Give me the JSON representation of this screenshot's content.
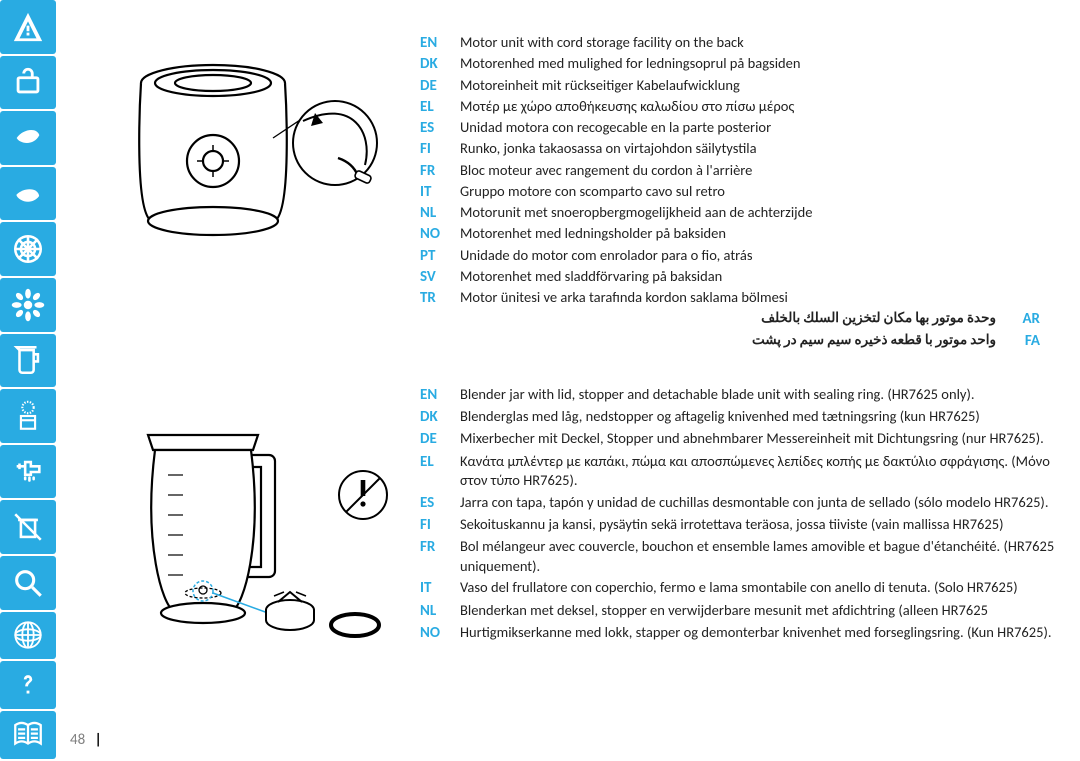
{
  "page_number": "48",
  "sidebar_bg": "#29abe2",
  "lang_code_color": "#29abe2",
  "text_color": "#222222",
  "section1": {
    "rows": [
      {
        "code": "EN",
        "text": "Motor unit with cord storage facility on the back"
      },
      {
        "code": "DK",
        "text": "Motorenhed med mulighed for ledningsoprul på bagsiden"
      },
      {
        "code": "DE",
        "text": "Motoreinheit mit rückseitiger Kabelaufwicklung"
      },
      {
        "code": "EL",
        "text": "Μοτέρ με χώρο αποθήκευσης καλωδίου στο πίσω μέρος"
      },
      {
        "code": "ES",
        "text": "Unidad motora con recogecable en la parte posterior"
      },
      {
        "code": "FI",
        "text": "Runko, jonka takaosassa on virtajohdon säilytystila"
      },
      {
        "code": "FR",
        "text": "Bloc moteur avec rangement du cordon à l'arrière"
      },
      {
        "code": "IT",
        "text": "Gruppo motore con scomparto cavo sul retro"
      },
      {
        "code": "NL",
        "text": "Motorunit met snoeropbergmogelijkheid aan de achterzijde"
      },
      {
        "code": "NO",
        "text": "Motorenhet med ledningsholder på baksiden"
      },
      {
        "code": "PT",
        "text": "Unidade do motor com enrolador para o fio, atrás"
      },
      {
        "code": "SV",
        "text": "Motorenhet med sladdförvaring på baksidan"
      },
      {
        "code": "TR",
        "text": "Motor ünitesi ve arka tarafında kordon saklama bölmesi"
      }
    ],
    "rtl_rows": [
      {
        "code": "AR",
        "text": "وحدة موتور بها مكان لتخزين السلك بالخلف"
      },
      {
        "code": "FA",
        "text": "واحد موتور با قطعه ذخیره سیم سیم در پشت"
      }
    ]
  },
  "section2": {
    "rows": [
      {
        "code": "EN",
        "text": "Blender jar with lid, stopper and detachable blade unit with sealing ring. (HR7625 only)."
      },
      {
        "code": "DK",
        "text": "Blenderglas med låg, nedstopper og aftagelig knivenhed med tætningsring (kun HR7625)"
      },
      {
        "code": "DE",
        "text": "Mixerbecher mit Deckel, Stopper und abnehmbarer Messereinheit mit Dichtungsring (nur HR7625)."
      },
      {
        "code": "EL",
        "text": "Κανάτα μπλέντερ με καπάκι, πώμα και αποσπώμενες λεπίδες κοπής με δακτύλιο σφράγισης. (Μόνο στον τύπο HR7625)."
      },
      {
        "code": "ES",
        "text": "Jarra con tapa, tapón y unidad de cuchillas desmontable con junta de sellado (sólo modelo HR7625)."
      },
      {
        "code": "FI",
        "text": "Sekoituskannu ja kansi, pysäytin sekä irrotettava teräosa, jossa tiiviste (vain mallissa HR7625)"
      },
      {
        "code": "FR",
        "text": "Bol mélangeur avec couvercle, bouchon et ensemble lames amovible et bague d'étanchéité. (HR7625 uniquement)."
      },
      {
        "code": "IT",
        "text": "Vaso del frullatore con coperchio, fermo e lama smontabile con anello di tenuta. (Solo HR7625)"
      },
      {
        "code": "NL",
        "text": "Blenderkan met deksel, stopper en verwijderbare mesunit met afdichtring (alleen HR7625"
      },
      {
        "code": "NO",
        "text": "Hurtigmikserkanne med lokk, stapper og demonterbar knivenhet med forseglingsring. (Kun HR7625)."
      }
    ]
  }
}
